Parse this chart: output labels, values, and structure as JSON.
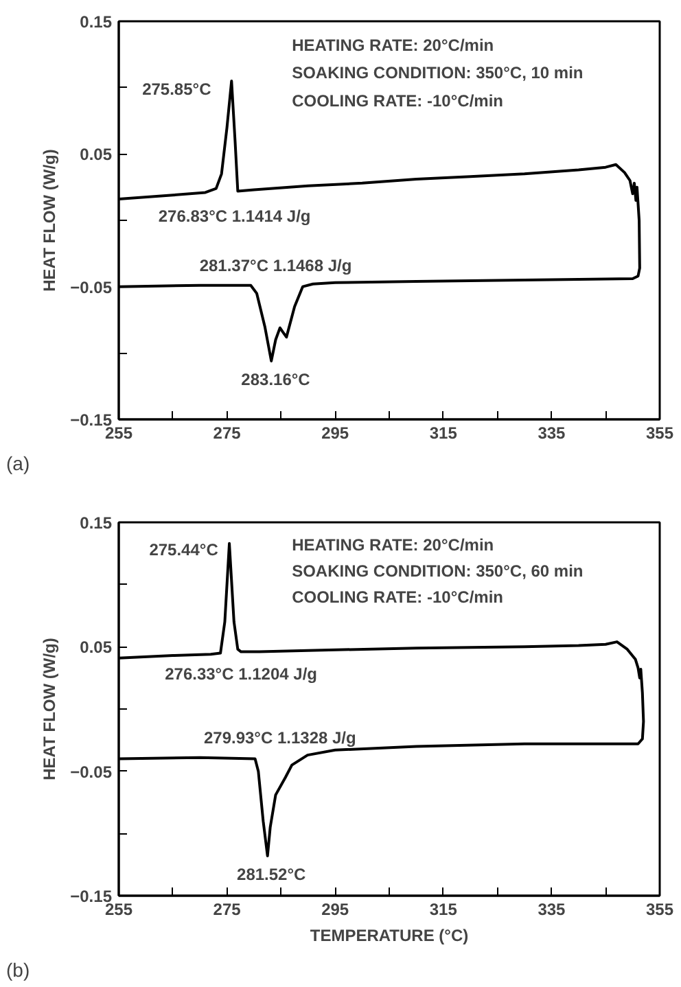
{
  "chart_data": [
    {
      "type": "line",
      "ylabel": "HEAT FLOW (W/g)",
      "xlim": [
        255,
        355
      ],
      "ylim": [
        -0.15,
        0.15
      ],
      "xticks": [
        255,
        {
          "value": 265,
          "label": null
        },
        275,
        {
          "value": 285,
          "label": null
        },
        295,
        {
          "value": 305,
          "label": null
        },
        315,
        {
          "value": 325,
          "label": null
        },
        335,
        {
          "value": 345,
          "label": null
        },
        355
      ],
      "yticks": [
        -0.15,
        {
          "value": -0.1,
          "label": null
        },
        -0.05,
        {
          "value": 0,
          "label": null
        },
        0.05,
        {
          "value": 0.1,
          "label": null
        },
        0.15
      ],
      "grid": false,
      "series": [
        {
          "color": "#000000",
          "x": [
            255,
            265,
            271,
            273,
            274,
            275,
            275.85,
            276.5,
            277,
            280,
            290,
            300,
            310,
            320,
            330,
            340,
            345,
            346.9,
            348.5,
            349.5,
            350,
            350.3,
            350.6,
            350.8,
            351.2,
            351.3,
            351,
            350,
            330,
            310,
            295,
            290.9,
            289,
            287.5,
            286,
            285.3,
            284.8,
            284,
            283.2,
            282,
            280.5,
            279.4,
            270,
            255
          ],
          "values": [
            0.016,
            0.019,
            0.021,
            0.024,
            0.035,
            0.07,
            0.105,
            0.06,
            0.022,
            0.023,
            0.026,
            0.028,
            0.031,
            0.033,
            0.035,
            0.038,
            0.04,
            0.042,
            0.036,
            0.03,
            0.02,
            0.028,
            0.015,
            0.025,
            0.0,
            -0.036,
            -0.042,
            -0.044,
            -0.045,
            -0.046,
            -0.047,
            -0.048,
            -0.05,
            -0.065,
            -0.088,
            -0.084,
            -0.081,
            -0.09,
            -0.106,
            -0.08,
            -0.055,
            -0.049,
            -0.049,
            -0.05
          ]
        }
      ],
      "annotations": [
        "275.85°C",
        "276.83°C 1.1414 J/g",
        "281.37°C 1.1468 J/g",
        "283.16°C",
        "HEATING RATE: 20°C/min",
        "SOAKING CONDITION: 350°C, 10 min",
        "COOLING RATE: -10°C/min",
        "(a)"
      ]
    },
    {
      "type": "line",
      "xlabel": "TEMPERATURE (°C)",
      "ylabel": "HEAT FLOW (W/g)",
      "xlim": [
        255,
        355
      ],
      "ylim": [
        -0.15,
        0.15
      ],
      "xticks": [
        255,
        {
          "value": 265,
          "label": null
        },
        275,
        {
          "value": 285,
          "label": null
        },
        295,
        {
          "value": 305,
          "label": null
        },
        315,
        {
          "value": 325,
          "label": null
        },
        335,
        {
          "value": 345,
          "label": null
        },
        355
      ],
      "yticks": [
        -0.15,
        {
          "value": -0.1,
          "label": null
        },
        -0.05,
        {
          "value": 0,
          "label": null
        },
        0.05,
        {
          "value": 0.1,
          "label": null
        },
        0.15
      ],
      "grid": false,
      "series": [
        {
          "color": "#000000",
          "x": [
            255,
            265,
            272,
            273.8,
            274.6,
            275.44,
            276.3,
            277,
            277.6,
            281,
            290,
            310,
            330,
            340,
            345,
            347.1,
            349,
            350.5,
            351,
            351.3,
            351.5,
            351.8,
            352,
            351.8,
            351,
            350,
            330,
            310,
            295,
            289.9,
            287,
            285.8,
            284,
            283,
            282.5,
            281.7,
            280.8,
            280.2,
            270,
            255
          ],
          "values": [
            0.041,
            0.043,
            0.044,
            0.045,
            0.07,
            0.133,
            0.07,
            0.048,
            0.046,
            0.046,
            0.047,
            0.049,
            0.05,
            0.051,
            0.052,
            0.054,
            0.048,
            0.04,
            0.033,
            0.025,
            0.032,
            0.013,
            -0.01,
            -0.024,
            -0.028,
            -0.028,
            -0.028,
            -0.03,
            -0.033,
            -0.037,
            -0.045,
            -0.055,
            -0.069,
            -0.095,
            -0.118,
            -0.09,
            -0.05,
            -0.04,
            -0.039,
            -0.04
          ]
        }
      ],
      "annotations": [
        "275.44°C",
        "276.33°C 1.1204 J/g",
        "279.93°C 1.1328 J/g",
        "281.52°C",
        "HEATING RATE: 20°C/min",
        "SOAKING CONDITION: 350°C, 60 min",
        "COOLING RATE: -10°C/min",
        "(b)"
      ]
    }
  ]
}
